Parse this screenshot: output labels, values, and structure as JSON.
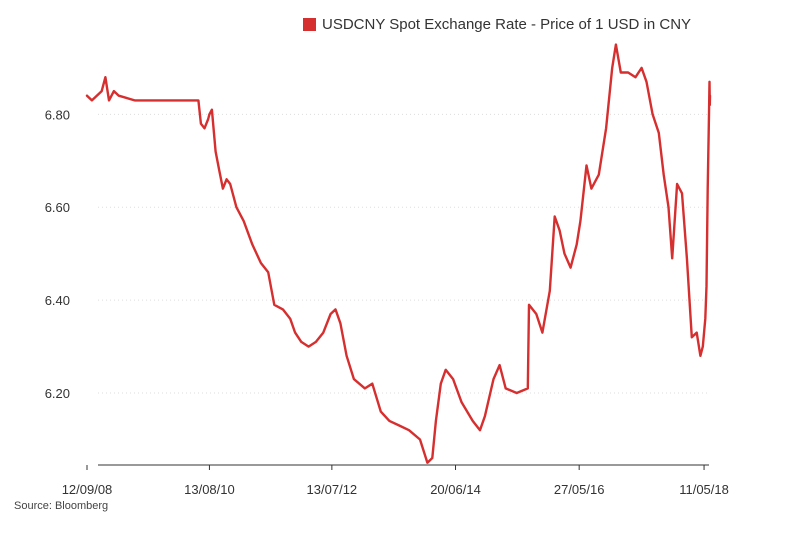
{
  "source": "Source: Bloomberg",
  "colors": {
    "series": "#d62f2f",
    "grid": "#dddddd",
    "axis": "#333333",
    "text": "#333333"
  },
  "chart_data": {
    "type": "line",
    "title": "",
    "xlabel": "",
    "ylabel": "",
    "ylim": [
      6.045,
      6.96
    ],
    "xlim": [
      "2008-09-12",
      "2018-06-14"
    ],
    "yticks": [
      {
        "value": 6.2,
        "label": "6.20"
      },
      {
        "value": 6.4,
        "label": "6.40"
      },
      {
        "value": 6.6,
        "label": "6.60"
      },
      {
        "value": 6.8,
        "label": "6.80"
      }
    ],
    "xticks": [
      {
        "date": "2008-09-12",
        "label": "12/09/08"
      },
      {
        "date": "2010-08-13",
        "label": "13/08/10"
      },
      {
        "date": "2012-07-13",
        "label": "13/07/12"
      },
      {
        "date": "2014-06-20",
        "label": "20/06/14"
      },
      {
        "date": "2016-05-27",
        "label": "27/05/16"
      },
      {
        "date": "2018-05-11",
        "label": "11/05/18"
      }
    ],
    "grid": "horizontal",
    "legend": "top-center",
    "series": [
      {
        "name": "USDCNY Spot Exchange Rate - Price of 1 USD in CNY",
        "points": [
          [
            "2008-09-12",
            6.84
          ],
          [
            "2008-10-10",
            6.83
          ],
          [
            "2008-11-07",
            6.84
          ],
          [
            "2008-12-05",
            6.85
          ],
          [
            "2008-12-26",
            6.88
          ],
          [
            "2009-01-16",
            6.83
          ],
          [
            "2009-02-13",
            6.85
          ],
          [
            "2009-03-13",
            6.84
          ],
          [
            "2009-06-12",
            6.83
          ],
          [
            "2009-09-11",
            6.83
          ],
          [
            "2009-12-11",
            6.83
          ],
          [
            "2010-03-12",
            6.83
          ],
          [
            "2010-06-11",
            6.83
          ],
          [
            "2010-06-25",
            6.78
          ],
          [
            "2010-07-16",
            6.77
          ],
          [
            "2010-08-06",
            6.79
          ],
          [
            "2010-08-13",
            6.8
          ],
          [
            "2010-08-27",
            6.81
          ],
          [
            "2010-09-17",
            6.72
          ],
          [
            "2010-10-08",
            6.68
          ],
          [
            "2010-10-29",
            6.64
          ],
          [
            "2010-11-19",
            6.66
          ],
          [
            "2010-12-10",
            6.65
          ],
          [
            "2011-01-14",
            6.6
          ],
          [
            "2011-02-25",
            6.57
          ],
          [
            "2011-04-15",
            6.52
          ],
          [
            "2011-06-03",
            6.48
          ],
          [
            "2011-07-15",
            6.46
          ],
          [
            "2011-08-19",
            6.39
          ],
          [
            "2011-10-07",
            6.38
          ],
          [
            "2011-11-18",
            6.36
          ],
          [
            "2011-12-16",
            6.33
          ],
          [
            "2012-01-20",
            6.31
          ],
          [
            "2012-03-02",
            6.3
          ],
          [
            "2012-04-13",
            6.31
          ],
          [
            "2012-05-25",
            6.33
          ],
          [
            "2012-07-06",
            6.37
          ],
          [
            "2012-08-03",
            6.38
          ],
          [
            "2012-08-31",
            6.35
          ],
          [
            "2012-10-05",
            6.28
          ],
          [
            "2012-11-16",
            6.23
          ],
          [
            "2013-01-18",
            6.21
          ],
          [
            "2013-03-01",
            6.22
          ],
          [
            "2013-04-19",
            6.16
          ],
          [
            "2013-06-07",
            6.14
          ],
          [
            "2013-08-02",
            6.13
          ],
          [
            "2013-09-27",
            6.12
          ],
          [
            "2013-11-29",
            6.1
          ],
          [
            "2014-01-10",
            6.05
          ],
          [
            "2014-02-07",
            6.06
          ],
          [
            "2014-02-28",
            6.14
          ],
          [
            "2014-03-28",
            6.22
          ],
          [
            "2014-04-25",
            6.25
          ],
          [
            "2014-06-06",
            6.23
          ],
          [
            "2014-07-25",
            6.18
          ],
          [
            "2014-09-26",
            6.14
          ],
          [
            "2014-11-07",
            6.12
          ],
          [
            "2014-12-05",
            6.15
          ],
          [
            "2015-01-23",
            6.23
          ],
          [
            "2015-02-27",
            6.26
          ],
          [
            "2015-04-03",
            6.21
          ],
          [
            "2015-06-05",
            6.2
          ],
          [
            "2015-08-07",
            6.21
          ],
          [
            "2015-08-14",
            6.39
          ],
          [
            "2015-09-25",
            6.37
          ],
          [
            "2015-10-30",
            6.33
          ],
          [
            "2015-12-11",
            6.42
          ],
          [
            "2016-01-08",
            6.58
          ],
          [
            "2016-02-05",
            6.55
          ],
          [
            "2016-03-04",
            6.5
          ],
          [
            "2016-04-08",
            6.47
          ],
          [
            "2016-05-13",
            6.52
          ],
          [
            "2016-06-03",
            6.57
          ],
          [
            "2016-07-08",
            6.69
          ],
          [
            "2016-08-05",
            6.64
          ],
          [
            "2016-09-16",
            6.67
          ],
          [
            "2016-10-28",
            6.77
          ],
          [
            "2016-12-02",
            6.9
          ],
          [
            "2016-12-23",
            6.95
          ],
          [
            "2017-01-20",
            6.89
          ],
          [
            "2017-03-03",
            6.89
          ],
          [
            "2017-04-14",
            6.88
          ],
          [
            "2017-05-19",
            6.9
          ],
          [
            "2017-06-16",
            6.87
          ],
          [
            "2017-07-21",
            6.8
          ],
          [
            "2017-08-25",
            6.76
          ],
          [
            "2017-09-22",
            6.67
          ],
          [
            "2017-10-20",
            6.6
          ],
          [
            "2017-11-10",
            6.49
          ],
          [
            "2017-12-08",
            6.65
          ],
          [
            "2018-01-05",
            6.63
          ],
          [
            "2018-02-02",
            6.49
          ],
          [
            "2018-03-02",
            6.32
          ],
          [
            "2018-03-30",
            6.33
          ],
          [
            "2018-04-20",
            6.28
          ],
          [
            "2018-05-04",
            6.3
          ],
          [
            "2018-05-18",
            6.36
          ],
          [
            "2018-05-25",
            6.43
          ],
          [
            "2018-06-01",
            6.64
          ],
          [
            "2018-06-08",
            6.8
          ],
          [
            "2018-06-11",
            6.87
          ],
          [
            "2018-06-13",
            6.82
          ],
          [
            "2018-06-14",
            6.84
          ]
        ]
      }
    ]
  }
}
